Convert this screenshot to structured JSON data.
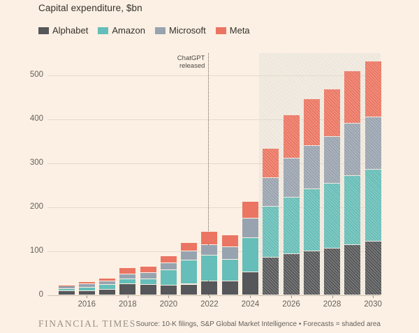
{
  "title": "Capital expenditure, $bn",
  "legend": [
    {
      "label": "Alphabet",
      "color": "#55575a"
    },
    {
      "label": "Amazon",
      "color": "#65beb9"
    },
    {
      "label": "Microsoft",
      "color": "#98a3b0"
    },
    {
      "label": "Meta",
      "color": "#eb7562"
    }
  ],
  "annotation": {
    "text": "ChatGPT released",
    "line1": "ChatGPT",
    "line2": "released"
  },
  "footer": {
    "brand": "FINANCIAL TIMES",
    "source": "Source: 10-K filings, S&P Global Market Intelligence • Forecasts = shaded area"
  },
  "colors": {
    "background": "#fbf0e3",
    "gridline": "#e4dacb",
    "baseline": "#cdc2b2",
    "axis_text": "#66605b",
    "alphabet": "#55575a",
    "amazon": "#65beb9",
    "microsoft": "#98a3b0",
    "meta": "#eb7562"
  },
  "chart_data": {
    "type": "bar",
    "stacked": true,
    "title": "Capital expenditure, $bn",
    "xlabel": "",
    "ylabel": "$bn",
    "ylim": [
      0,
      545
    ],
    "yticks": [
      0,
      100,
      200,
      300,
      400,
      500
    ],
    "grid": "horizontal",
    "legend_position": "top-left",
    "categories": [
      2015,
      2016,
      2017,
      2018,
      2019,
      2020,
      2021,
      2022,
      2023,
      2024,
      2025,
      2026,
      2027,
      2028,
      2029,
      2030
    ],
    "x_axis_labeled_ticks": [
      2016,
      2018,
      2020,
      2022,
      2024,
      2026,
      2028,
      2030
    ],
    "series": [
      {
        "name": "Alphabet",
        "color": "#55575a",
        "values": [
          9.9,
          10.2,
          13.2,
          25.1,
          23.5,
          22.3,
          24.6,
          31.5,
          32.3,
          52.5,
          85,
          94,
          100,
          107,
          114,
          122
        ]
      },
      {
        "name": "Amazon",
        "color": "#65beb9",
        "values": [
          4.6,
          6.7,
          10.1,
          11.3,
          12.7,
          35.0,
          55.4,
          58.3,
          48.4,
          77.7,
          117,
          129,
          142,
          147,
          158,
          164
        ]
      },
      {
        "name": "Microsoft",
        "color": "#98a3b0",
        "values": [
          5.9,
          8.3,
          8.1,
          11.6,
          13.9,
          15.4,
          20.6,
          23.9,
          28.1,
          44.5,
          64,
          88,
          98,
          106,
          118,
          118
        ]
      },
      {
        "name": "Meta",
        "color": "#eb7562",
        "values": [
          2.5,
          4.5,
          6.7,
          13.9,
          15.1,
          15.7,
          19.2,
          31.4,
          27.3,
          38.5,
          68,
          99,
          106,
          108,
          120,
          128
        ]
      }
    ],
    "forecast_from": 2025,
    "forecast_style": "shaded hatched area",
    "annotation": {
      "text": "ChatGPT released",
      "x_year": 2022
    }
  }
}
